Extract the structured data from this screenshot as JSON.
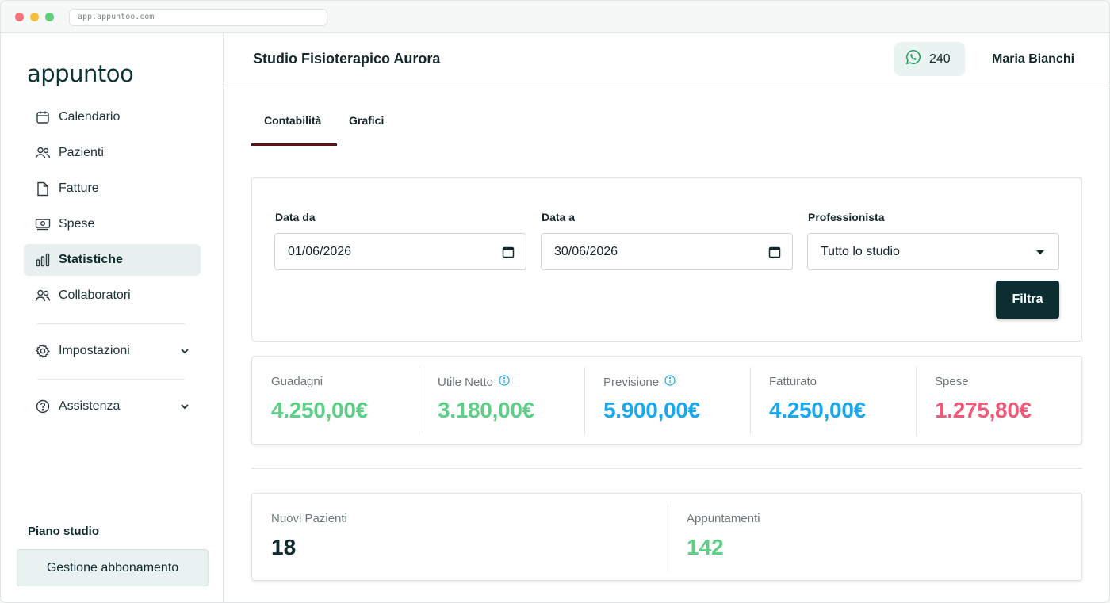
{
  "browser": {
    "url": "app.appuntoo.com"
  },
  "app": {
    "logo": "appuntoo"
  },
  "sidebar": {
    "items": [
      {
        "label": "Calendario",
        "icon": "calendar-icon"
      },
      {
        "label": "Pazienti",
        "icon": "users-icon"
      },
      {
        "label": "Fatture",
        "icon": "document-icon"
      },
      {
        "label": "Spese",
        "icon": "cash-icon"
      },
      {
        "label": "Statistiche",
        "icon": "bar-chart-icon",
        "active": true
      },
      {
        "label": "Collaboratori",
        "icon": "users-icon"
      },
      {
        "label": "Impostazioni",
        "icon": "gear-icon"
      },
      {
        "label": "Assistenza",
        "icon": "help-icon"
      }
    ],
    "plan_label": "Piano studio",
    "plan_button": "Gestione abbonamento"
  },
  "header": {
    "studio_name": "Studio Fisioterapico Aurora",
    "whatsapp_count": "240",
    "user_name": "Maria Bianchi"
  },
  "tabs": [
    {
      "label": "Contabilità",
      "active": true
    },
    {
      "label": "Grafici",
      "active": false
    }
  ],
  "filters": {
    "date_from_label": "Data da",
    "date_from_value": "01/06/2026",
    "date_to_label": "Data a",
    "date_to_value": "30/06/2026",
    "professional_label": "Professionista",
    "professional_value": "Tutto lo studio",
    "submit_label": "Filtra"
  },
  "stats": [
    {
      "label": "Guadagni",
      "value": "4.250,00€",
      "color": "#5dcf86",
      "info": false
    },
    {
      "label": "Utile Netto",
      "value": "3.180,00€",
      "color": "#5dcf86",
      "info": true
    },
    {
      "label": "Previsione",
      "value": "5.900,00€",
      "color": "#1aa8ee",
      "info": true
    },
    {
      "label": "Fatturato",
      "value": "4.250,00€",
      "color": "#1aa8ee",
      "info": false
    },
    {
      "label": "Spese",
      "value": "1.275,80€",
      "color": "#ef5a78",
      "info": false
    }
  ],
  "counts": [
    {
      "label": "Nuovi Pazienti",
      "value": "18",
      "color": "#0f2b2e"
    },
    {
      "label": "Appuntamenti",
      "value": "142",
      "color": "#5dcf86"
    }
  ]
}
